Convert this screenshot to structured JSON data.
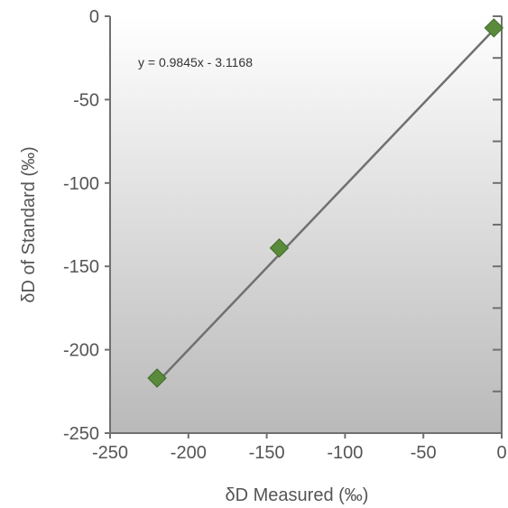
{
  "chart_data": {
    "type": "scatter",
    "title": "",
    "xlabel": "δD Measured (‰)",
    "ylabel": "δD of Standard (‰)",
    "xlim": [
      -250,
      0
    ],
    "ylim": [
      -250,
      0
    ],
    "xticks": [
      -250,
      -200,
      -150,
      -100,
      -50,
      0
    ],
    "yticks": [
      -250,
      -200,
      -150,
      -100,
      -50,
      0
    ],
    "grid": false,
    "series": [
      {
        "marker_color": "#5a8a3c",
        "points": [
          {
            "x": -220,
            "y": -217
          },
          {
            "x": -142,
            "y": -139
          },
          {
            "x": -5,
            "y": -7
          }
        ]
      }
    ],
    "trendline": {
      "slope": 0.9845,
      "intercept": -3.1168,
      "color": "#707070",
      "x_range": [
        -220,
        -5
      ]
    },
    "annotation": "y = 0.9845x - 3.1168",
    "plot_background": {
      "top": "#ffffff",
      "bottom": "#b9b9b9"
    },
    "axis_color": "#707070"
  }
}
